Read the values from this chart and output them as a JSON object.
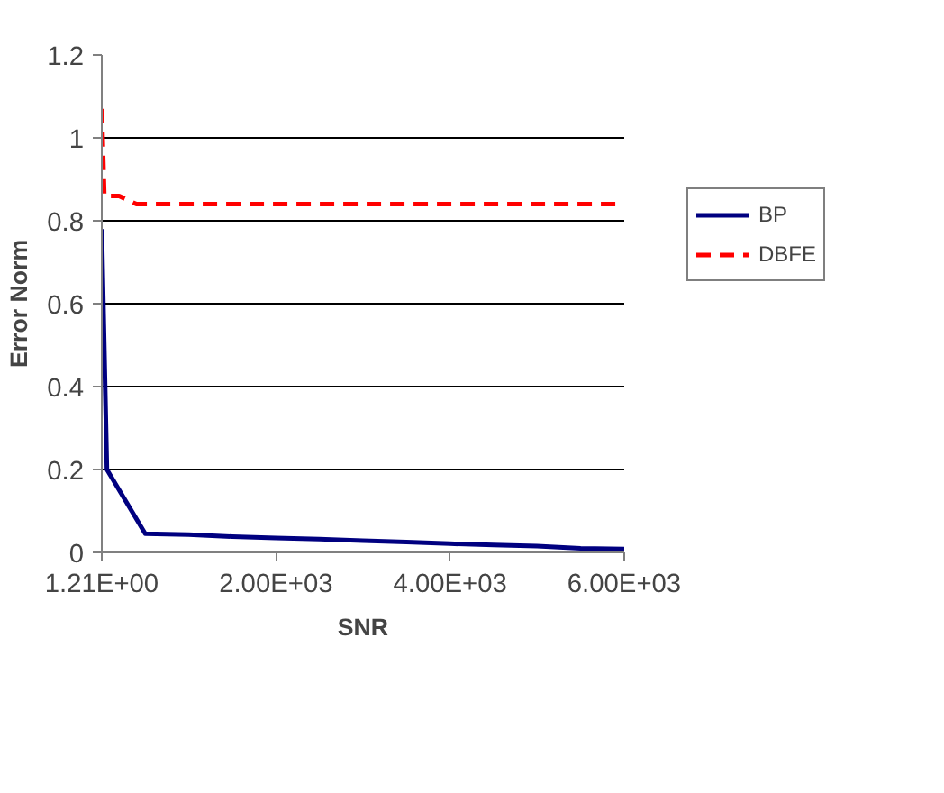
{
  "chart_data": {
    "type": "line",
    "xlabel": "SNR",
    "ylabel": "Error Norm",
    "xlim": [
      1.21,
      6001.21
    ],
    "xticks": [
      {
        "value": 1.21,
        "label": "1.21E+00"
      },
      {
        "value": 2001.21,
        "label": "2.00E+03"
      },
      {
        "value": 4001.21,
        "label": "4.00E+03"
      },
      {
        "value": 6001.21,
        "label": "6.00E+03"
      }
    ],
    "ylim": [
      0,
      1.2
    ],
    "yticks": [
      0,
      {
        "value": 0.2,
        "label": "0.2"
      },
      {
        "value": 0.4,
        "label": "0.4"
      },
      {
        "value": 0.6,
        "label": "0.6"
      },
      {
        "value": 0.8,
        "label": "0.8"
      },
      1,
      {
        "value": 1.2,
        "label": "1.2"
      }
    ],
    "grid": "y",
    "legend": "right",
    "marker": "none",
    "series": [
      {
        "name": "BP",
        "color": "#000080",
        "line_style": "solid",
        "x": [
          1.21,
          60,
          500,
          1000,
          1500,
          2000,
          2500,
          3000,
          3500,
          4000,
          4500,
          5000,
          5500,
          6001.21
        ],
        "values": [
          0.78,
          0.2,
          0.045,
          0.043,
          0.038,
          0.035,
          0.032,
          0.028,
          0.025,
          0.021,
          0.018,
          0.015,
          0.01,
          0.008
        ]
      },
      {
        "name": "DBFE",
        "color": "#ff0000",
        "line_style": "dashed",
        "x": [
          1.21,
          30,
          200,
          300,
          400,
          6001.21
        ],
        "values": [
          1.07,
          0.86,
          0.86,
          0.85,
          0.84,
          0.84
        ]
      }
    ]
  }
}
